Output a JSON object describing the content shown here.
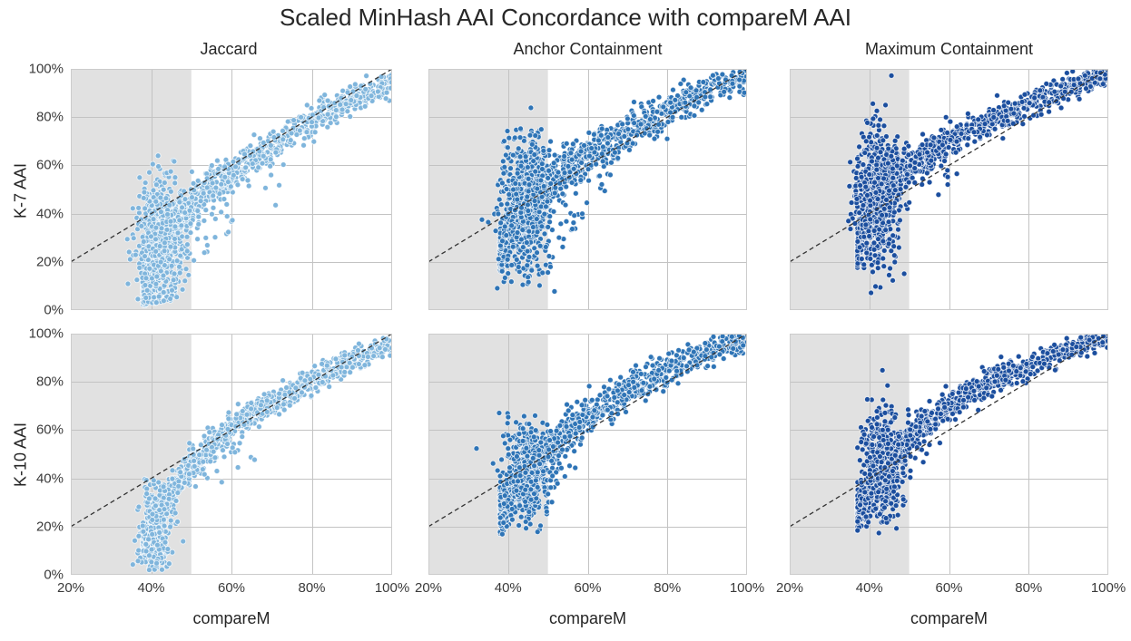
{
  "chart_data": {
    "type": "scatter",
    "title": "Scaled MinHash AAI Concordance with compareM AAI",
    "columns": [
      "Jaccard",
      "Anchor Containment",
      "Maximum Containment"
    ],
    "rows": [
      "K-7 AAI",
      "K-10 AAI"
    ],
    "xlabel": "compareM",
    "x_ticks": [
      "20%",
      "40%",
      "60%",
      "80%",
      "100%"
    ],
    "y_ticks": [
      "0%",
      "20%",
      "40%",
      "60%",
      "80%",
      "100%"
    ],
    "x_tick_values": [
      20,
      40,
      60,
      80,
      100
    ],
    "y_tick_values": [
      0,
      20,
      40,
      60,
      80,
      100
    ],
    "x_grid_values": [
      40,
      60,
      80
    ],
    "y_grid_values": [
      20,
      40,
      60,
      80
    ],
    "xlim": [
      20,
      100
    ],
    "ylim": [
      0,
      100
    ],
    "grid": true,
    "legend": "none",
    "shaded_region": {
      "x_start": 20,
      "x_end": 50,
      "color": "#e1e1e1"
    },
    "identity_line": {
      "from": [
        20,
        20
      ],
      "to": [
        100,
        100
      ],
      "style": "dashed",
      "color": "#333333"
    },
    "style": {
      "background": "#ffffff",
      "grid_color": "#c3c3c3",
      "spine_color": "#cccccc",
      "marker_radius_px": 3.0,
      "marker_edge": "rgba(255,255,255,0.75)",
      "text_color": "#262626",
      "jaccard_blue": "#7FB5DC",
      "anchor_blue": "#2E74B6",
      "maximum_blue": "#1B4E9E"
    },
    "panels": [
      {
        "id": "k7-jaccard",
        "row_label": "K-7 AAI",
        "col_label": "Jaccard",
        "seed": 11,
        "color": "#7FB5DC",
        "show_y_ticks": true,
        "show_x_ticks": false,
        "trend_points": [
          [
            36,
            6
          ],
          [
            40,
            16
          ],
          [
            44,
            30
          ],
          [
            48,
            40
          ],
          [
            52,
            46
          ],
          [
            56,
            52
          ],
          [
            60,
            57
          ],
          [
            66,
            63
          ],
          [
            72,
            70
          ],
          [
            78,
            76
          ],
          [
            84,
            82
          ],
          [
            90,
            87
          ],
          [
            95,
            91
          ],
          [
            100,
            94
          ]
        ],
        "band": {
          "n": 1100,
          "sd": 4.8,
          "bias": 2.0,
          "x_min": 38,
          "x_max": 100
        },
        "blob": {
          "n": 680,
          "cx": 42.5,
          "cy": 28,
          "sx": 2.7,
          "sy": 13
        },
        "outliers": {
          "n": 30,
          "x_min": 46,
          "x_max": 72,
          "drop_min": 6,
          "drop_max": 26
        }
      },
      {
        "id": "k7-anchor",
        "row_label": "K-7 AAI",
        "col_label": "Anchor Containment",
        "seed": 22,
        "color": "#2E74B6",
        "show_y_ticks": false,
        "show_x_ticks": false,
        "trend_points": [
          [
            36,
            20
          ],
          [
            40,
            30
          ],
          [
            44,
            42
          ],
          [
            48,
            50
          ],
          [
            52,
            55
          ],
          [
            56,
            60
          ],
          [
            60,
            64
          ],
          [
            66,
            70
          ],
          [
            72,
            76
          ],
          [
            78,
            81
          ],
          [
            84,
            86
          ],
          [
            90,
            91
          ],
          [
            95,
            94
          ],
          [
            100,
            97
          ]
        ],
        "band": {
          "n": 1100,
          "sd": 5.0,
          "bias": 1.9,
          "x_min": 38,
          "x_max": 100
        },
        "blob": {
          "n": 700,
          "cx": 44.5,
          "cy": 44,
          "sx": 3.2,
          "sy": 13
        },
        "outliers": {
          "n": 32,
          "x_min": 42,
          "x_max": 66,
          "drop_min": 8,
          "drop_max": 28
        }
      },
      {
        "id": "k7-maximum",
        "row_label": "K-7 AAI",
        "col_label": "Maximum Containment",
        "seed": 33,
        "color": "#1B4E9E",
        "show_y_ticks": false,
        "show_x_ticks": false,
        "trend_points": [
          [
            36,
            24
          ],
          [
            40,
            38
          ],
          [
            44,
            50
          ],
          [
            48,
            57
          ],
          [
            52,
            62
          ],
          [
            56,
            66
          ],
          [
            60,
            70
          ],
          [
            66,
            75
          ],
          [
            72,
            80
          ],
          [
            78,
            84
          ],
          [
            84,
            88
          ],
          [
            90,
            92
          ],
          [
            95,
            95
          ],
          [
            100,
            97
          ]
        ],
        "band": {
          "n": 1050,
          "sd": 4.0,
          "bias": 1.9,
          "x_min": 37,
          "x_max": 100
        },
        "blob": {
          "n": 720,
          "cx": 42,
          "cy": 48,
          "sx": 2.5,
          "sy": 13
        },
        "outliers": {
          "n": 20,
          "x_min": 44,
          "x_max": 62,
          "drop_min": 6,
          "drop_max": 20
        }
      },
      {
        "id": "k10-jaccard",
        "row_label": "K-10 AAI",
        "col_label": "Jaccard",
        "seed": 44,
        "color": "#7FB5DC",
        "show_y_ticks": true,
        "show_x_ticks": true,
        "trend_points": [
          [
            36,
            4
          ],
          [
            40,
            18
          ],
          [
            44,
            31
          ],
          [
            48,
            41
          ],
          [
            52,
            48
          ],
          [
            56,
            55
          ],
          [
            60,
            61
          ],
          [
            66,
            67
          ],
          [
            72,
            73
          ],
          [
            78,
            79
          ],
          [
            84,
            84
          ],
          [
            90,
            89
          ],
          [
            95,
            92
          ],
          [
            100,
            95
          ]
        ],
        "band": {
          "n": 1150,
          "sd": 3.6,
          "bias": 1.8,
          "x_min": 38,
          "x_max": 100
        },
        "blob": {
          "n": 300,
          "cx": 41,
          "cy": 18,
          "sx": 1.8,
          "sy": 9
        },
        "outliers": {
          "n": 20,
          "x_min": 46,
          "x_max": 66,
          "drop_min": 5,
          "drop_max": 20
        }
      },
      {
        "id": "k10-anchor",
        "row_label": "K-10 AAI",
        "col_label": "Anchor Containment",
        "seed": 55,
        "color": "#2E74B6",
        "show_y_ticks": false,
        "show_x_ticks": true,
        "trend_points": [
          [
            36,
            22
          ],
          [
            40,
            31
          ],
          [
            44,
            41
          ],
          [
            48,
            49
          ],
          [
            52,
            55
          ],
          [
            56,
            61
          ],
          [
            60,
            66
          ],
          [
            66,
            72
          ],
          [
            72,
            78
          ],
          [
            78,
            83
          ],
          [
            84,
            88
          ],
          [
            90,
            92
          ],
          [
            95,
            95
          ],
          [
            100,
            98
          ]
        ],
        "band": {
          "n": 1150,
          "sd": 4.4,
          "bias": 1.8,
          "x_min": 38,
          "x_max": 100
        },
        "blob": {
          "n": 430,
          "cx": 45,
          "cy": 42,
          "sx": 3.1,
          "sy": 10
        },
        "outliers": {
          "n": 15,
          "x_min": 44,
          "x_max": 60,
          "drop_min": 6,
          "drop_max": 18
        }
      },
      {
        "id": "k10-maximum",
        "row_label": "K-10 AAI",
        "col_label": "Maximum Containment",
        "seed": 66,
        "color": "#1B4E9E",
        "show_y_ticks": false,
        "show_x_ticks": true,
        "trend_points": [
          [
            36,
            24
          ],
          [
            40,
            35
          ],
          [
            44,
            46
          ],
          [
            48,
            54
          ],
          [
            52,
            60
          ],
          [
            56,
            65
          ],
          [
            60,
            70
          ],
          [
            66,
            76
          ],
          [
            72,
            81
          ],
          [
            78,
            85
          ],
          [
            84,
            89
          ],
          [
            90,
            93
          ],
          [
            95,
            96
          ],
          [
            100,
            98
          ]
        ],
        "band": {
          "n": 1100,
          "sd": 3.6,
          "bias": 1.8,
          "x_min": 37,
          "x_max": 100
        },
        "blob": {
          "n": 460,
          "cx": 43,
          "cy": 45,
          "sx": 2.4,
          "sy": 11
        },
        "outliers": {
          "n": 13,
          "x_min": 44,
          "x_max": 58,
          "drop_min": 5,
          "drop_max": 16
        }
      }
    ]
  }
}
